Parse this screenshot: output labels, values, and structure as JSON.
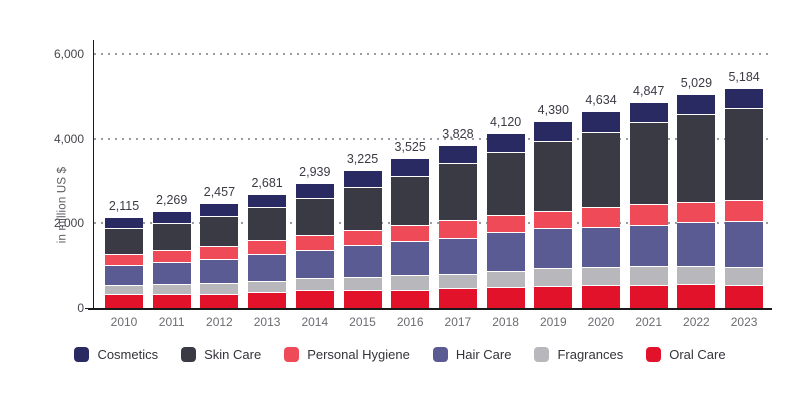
{
  "colors": {
    "background": "#ffffff",
    "axis_line": "#1a1a1a",
    "grid_dots": "#9b9ba1",
    "total_label_text": "#3a3a45",
    "ytick_text": "#45454d",
    "year_text": "#6b6b72",
    "ylabel_text": "#5a5a62",
    "legend_text": "#33333a"
  },
  "chart_data": {
    "type": "bar",
    "stacked": true,
    "title": "",
    "xlabel": "",
    "ylabel": "in million US $",
    "ylim": [
      0,
      6000
    ],
    "yticks": [
      0,
      2000,
      4000,
      6000
    ],
    "ytick_labels": [
      "0",
      "2,000",
      "4,000",
      "6,000"
    ],
    "grid": "horizontal dotted lines at 2000/4000/6000",
    "legend_position": "bottom",
    "legend_order": [
      "Cosmetics",
      "Skin Care",
      "Personal Hygiene",
      "Hair Care",
      "Fragrances",
      "Oral Care"
    ],
    "categories": [
      "2010",
      "2011",
      "2012",
      "2013",
      "2014",
      "2015",
      "2016",
      "2017",
      "2018",
      "2019",
      "2020",
      "2021",
      "2022",
      "2023"
    ],
    "totals": [
      2115,
      2269,
      2457,
      2681,
      2939,
      3225,
      3525,
      3828,
      4120,
      4390,
      4634,
      4847,
      5029,
      5184
    ],
    "total_labels": [
      "2,115",
      "2,269",
      "2,457",
      "2,681",
      "2,939",
      "3,225",
      "3,525",
      "3,828",
      "4,120",
      "4,390",
      "4,634",
      "4,847",
      "5,029",
      "5,184"
    ],
    "stacking_note": "series listed bottom-to-top; segment values estimated from pixel heights, sums match labeled totals",
    "series": [
      {
        "name": "Oral Care",
        "color": "#e2122b",
        "values": [
          300,
          310,
          317,
          346,
          394,
          410,
          410,
          438,
          465,
          495,
          520,
          530,
          535,
          519
        ]
      },
      {
        "name": "Fragrances",
        "color": "#b8b8bc",
        "values": [
          215,
          229,
          250,
          270,
          285,
          300,
          340,
          350,
          385,
          425,
          429,
          432,
          434,
          435
        ]
      },
      {
        "name": "Hair Care",
        "color": "#5b5b93",
        "values": [
          480,
          515,
          570,
          640,
          675,
          745,
          815,
          835,
          930,
          935,
          935,
          985,
          1030,
          1070
        ]
      },
      {
        "name": "Personal Hygiene",
        "color": "#ee4a57",
        "values": [
          265,
          285,
          300,
          320,
          355,
          365,
          375,
          425,
          390,
          410,
          470,
          480,
          490,
          500
        ]
      },
      {
        "name": "Skin Care",
        "color": "#3a3a45",
        "values": [
          600,
          655,
          720,
          785,
          860,
          1010,
          1165,
          1345,
          1500,
          1650,
          1790,
          1935,
          2060,
          2175
        ]
      },
      {
        "name": "Cosmetics",
        "color": "#2a2a62",
        "values": [
          255,
          275,
          300,
          320,
          370,
          395,
          420,
          435,
          450,
          475,
          490,
          485,
          480,
          485
        ]
      }
    ]
  }
}
